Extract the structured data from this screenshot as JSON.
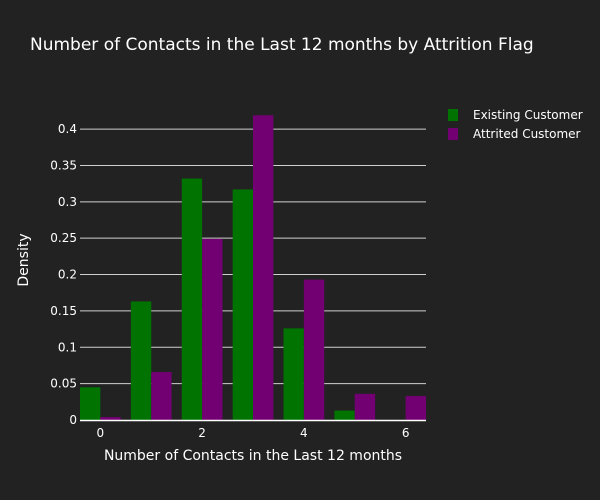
{
  "chart_data": {
    "type": "bar",
    "title": "Number of Contacts in the Last 12 months by Attrition Flag",
    "xlabel": "Number of Contacts in the Last 12 months",
    "ylabel": "Density",
    "x": [
      0,
      1,
      2,
      3,
      4,
      5,
      6
    ],
    "xticks": [
      0,
      2,
      4,
      6
    ],
    "xlim": [
      -0.4,
      6.4
    ],
    "ylim": [
      0,
      0.44
    ],
    "yticks": [
      0,
      0.05,
      0.1,
      0.15,
      0.2,
      0.25,
      0.3,
      0.35,
      0.4
    ],
    "ytick_labels": [
      "0",
      "0.05",
      "0.1",
      "0.15",
      "0.2",
      "0.25",
      "0.3",
      "0.35",
      "0.4"
    ],
    "grid": true,
    "legend_position": "top-right",
    "background": "#222222",
    "series": [
      {
        "name": "Existing Customer",
        "color": "#007300",
        "values": [
          0.045,
          0.163,
          0.332,
          0.317,
          0.126,
          0.013,
          0.0
        ]
      },
      {
        "name": "Attrited Customer",
        "color": "#730073",
        "values": [
          0.004,
          0.066,
          0.249,
          0.419,
          0.193,
          0.036,
          0.033
        ]
      }
    ]
  }
}
